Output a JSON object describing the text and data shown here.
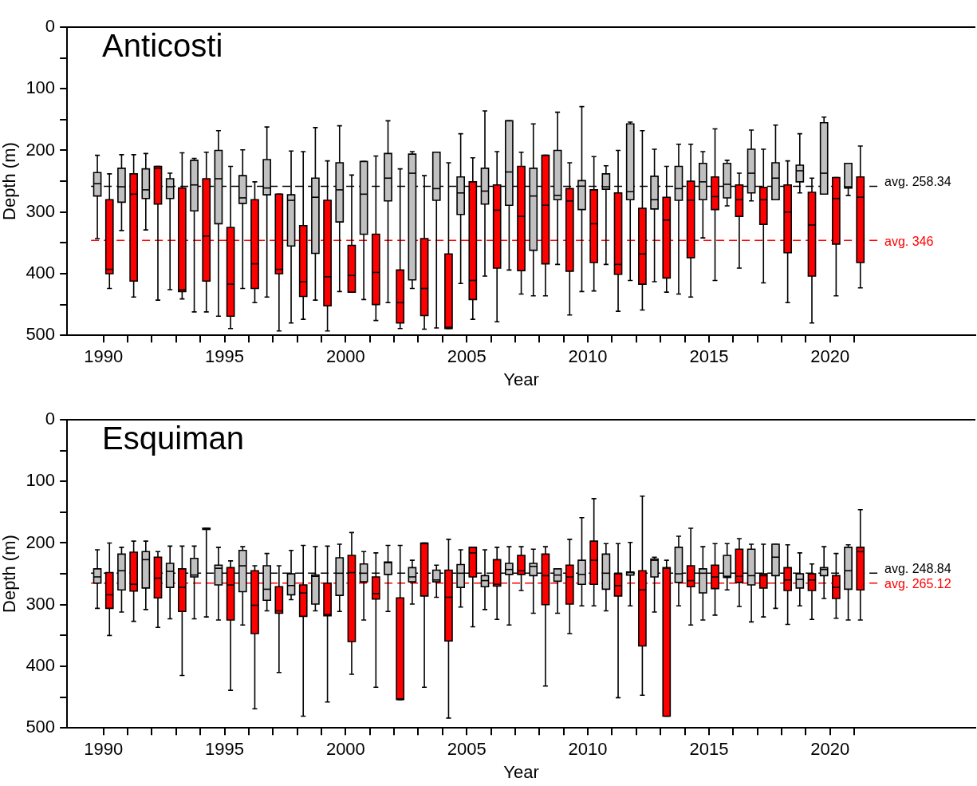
{
  "chart_data": [
    {
      "type": "box",
      "title": "Anticosti",
      "xlabel": "Year",
      "ylabel": "Depth (m)",
      "legend": false,
      "xlim": [
        1988.5,
        2026
      ],
      "ylim": [
        500,
        0
      ],
      "xticks": [
        1990,
        {
          "value": 1991,
          "label": null
        },
        {
          "value": 1992,
          "label": null
        },
        {
          "value": 1993,
          "label": null
        },
        {
          "value": 1994,
          "label": null
        },
        1995,
        {
          "value": 1996,
          "label": null
        },
        {
          "value": 1997,
          "label": null
        },
        {
          "value": 1998,
          "label": null
        },
        {
          "value": 1999,
          "label": null
        },
        2000,
        {
          "value": 2001,
          "label": null
        },
        {
          "value": 2002,
          "label": null
        },
        {
          "value": 2003,
          "label": null
        },
        {
          "value": 2004,
          "label": null
        },
        2005,
        {
          "value": 2006,
          "label": null
        },
        {
          "value": 2007,
          "label": null
        },
        {
          "value": 2008,
          "label": null
        },
        {
          "value": 2009,
          "label": null
        },
        2010,
        {
          "value": 2011,
          "label": null
        },
        {
          "value": 2012,
          "label": null
        },
        {
          "value": 2013,
          "label": null
        },
        {
          "value": 2014,
          "label": null
        },
        2015,
        {
          "value": 2016,
          "label": null
        },
        {
          "value": 2017,
          "label": null
        },
        {
          "value": 2018,
          "label": null
        },
        {
          "value": 2019,
          "label": null
        },
        2020,
        {
          "value": 2021,
          "label": null
        }
      ],
      "yticks": [
        0,
        {
          "value": 50,
          "label": null
        },
        100,
        {
          "value": 150,
          "label": null
        },
        200,
        {
          "value": 250,
          "label": null
        },
        300,
        {
          "value": 350,
          "label": null
        },
        400,
        {
          "value": 450,
          "label": null
        },
        500
      ],
      "series": [
        {
          "color": "#c0c0c0",
          "x": [
            1989.75,
            1990.75,
            1991.75,
            1992.75,
            1993.75,
            1994.75,
            1995.75,
            1996.75,
            1997.75,
            1998.75,
            1999.75,
            2000.75,
            2001.75,
            2002.75,
            2003.75,
            2004.75,
            2005.75,
            2006.75,
            2007.75,
            2008.75,
            2009.75,
            2010.75,
            2011.75,
            2012.75,
            2013.75,
            2014.75,
            2015.75,
            2016.75,
            2017.75,
            2018.75,
            2019.75,
            2020.75
          ],
          "boxes": [
            {
              "low": 208,
              "q1": 236,
              "median": 254,
              "q3": 274,
              "high": 343
            },
            {
              "low": 207,
              "q1": 229,
              "median": 259,
              "q3": 284,
              "high": 330
            },
            {
              "low": 205,
              "q1": 230,
              "median": 264,
              "q3": 278,
              "high": 329
            },
            {
              "low": 237,
              "q1": 246,
              "median": 259,
              "q3": 278,
              "high": 426
            },
            {
              "low": 213,
              "q1": 216,
              "median": 256,
              "q3": 298,
              "high": 462
            },
            {
              "low": 168,
              "q1": 200,
              "median": 246,
              "q3": 319,
              "high": 469
            },
            {
              "low": 199,
              "q1": 241,
              "median": 277,
              "q3": 286,
              "high": 424
            },
            {
              "low": 162,
              "q1": 215,
              "median": 261,
              "q3": 272,
              "high": 438
            },
            {
              "low": 201,
              "q1": 272,
              "median": 281,
              "q3": 355,
              "high": 480
            },
            {
              "low": 163,
              "q1": 245,
              "median": 276,
              "q3": 367,
              "high": 443
            },
            {
              "low": 160,
              "q1": 220,
              "median": 264,
              "q3": 316,
              "high": 429
            },
            {
              "low": 218,
              "q1": 218,
              "median": 271,
              "q3": 336,
              "high": 442
            },
            {
              "low": 152,
              "q1": 205,
              "median": 245,
              "q3": 282,
              "high": 447
            },
            {
              "low": 202,
              "q1": 206,
              "median": 237,
              "q3": 410,
              "high": 424
            },
            {
              "low": 203,
              "q1": 203,
              "median": 262,
              "q3": 281,
              "high": 488
            },
            {
              "low": 173,
              "q1": 243,
              "median": 269,
              "q3": 304,
              "high": 416
            },
            {
              "low": 136,
              "q1": 229,
              "median": 266,
              "q3": 287,
              "high": 404
            },
            {
              "low": 152,
              "q1": 152,
              "median": 235,
              "q3": 289,
              "high": 394
            },
            {
              "low": 157,
              "q1": 229,
              "median": 274,
              "q3": 362,
              "high": 436
            },
            {
              "low": 138,
              "q1": 200,
              "median": 273,
              "q3": 280,
              "high": 385
            },
            {
              "low": 129,
              "q1": 249,
              "median": 258,
              "q3": 296,
              "high": 429
            },
            {
              "low": 225,
              "q1": 238,
              "median": 259,
              "q3": 263,
              "high": 385
            },
            {
              "low": 154,
              "q1": 157,
              "median": 267,
              "q3": 280,
              "high": 411
            },
            {
              "low": 198,
              "q1": 242,
              "median": 280,
              "q3": 295,
              "high": 413
            },
            {
              "low": 190,
              "q1": 226,
              "median": 262,
              "q3": 281,
              "high": 433
            },
            {
              "low": 202,
              "q1": 221,
              "median": 251,
              "q3": 280,
              "high": 342
            },
            {
              "low": 216,
              "q1": 221,
              "median": 255,
              "q3": 277,
              "high": 290
            },
            {
              "low": 167,
              "q1": 198,
              "median": 237,
              "q3": 269,
              "high": 282
            },
            {
              "low": 159,
              "q1": 220,
              "median": 245,
              "q3": 280,
              "high": 280
            },
            {
              "low": 173,
              "q1": 224,
              "median": 233,
              "q3": 251,
              "high": 269
            },
            {
              "low": 146,
              "q1": 155,
              "median": 237,
              "q3": 271,
              "high": 271
            },
            {
              "low": 221,
              "q1": 221,
              "median": 259,
              "q3": 261,
              "high": 273
            }
          ]
        },
        {
          "color": "#ff0000",
          "x": [
            1990.25,
            1991.25,
            1992.25,
            1993.25,
            1994.25,
            1995.25,
            1996.25,
            1997.25,
            1998.25,
            1999.25,
            2000.25,
            2001.25,
            2002.25,
            2003.25,
            2004.25,
            2005.25,
            2006.25,
            2007.25,
            2008.25,
            2009.25,
            2010.25,
            2011.25,
            2012.25,
            2013.25,
            2014.25,
            2015.25,
            2016.25,
            2017.25,
            2018.25,
            2019.25,
            2020.25,
            2021.25
          ],
          "boxes": [
            {
              "low": 238,
              "q1": 280,
              "median": 393,
              "q3": 400,
              "high": 424
            },
            {
              "low": 207,
              "q1": 238,
              "median": 271,
              "q3": 412,
              "high": 438
            },
            {
              "low": 226,
              "q1": 226,
              "median": 229,
              "q3": 287,
              "high": 443
            },
            {
              "low": 204,
              "q1": 261,
              "median": 426,
              "q3": 429,
              "high": 441
            },
            {
              "low": 203,
              "q1": 246,
              "median": 339,
              "q3": 412,
              "high": 462
            },
            {
              "low": 226,
              "q1": 325,
              "median": 417,
              "q3": 469,
              "high": 489
            },
            {
              "low": 251,
              "q1": 280,
              "median": 384,
              "q3": 424,
              "high": 447
            },
            {
              "low": 271,
              "q1": 271,
              "median": 393,
              "q3": 400,
              "high": 493
            },
            {
              "low": 202,
              "q1": 322,
              "median": 413,
              "q3": 437,
              "high": 474
            },
            {
              "low": 217,
              "q1": 281,
              "median": 405,
              "q3": 452,
              "high": 493
            },
            {
              "low": 240,
              "q1": 354,
              "median": 403,
              "q3": 430,
              "high": 430
            },
            {
              "low": 209,
              "q1": 336,
              "median": 398,
              "q3": 450,
              "high": 476
            },
            {
              "low": 230,
              "q1": 394,
              "median": 447,
              "q3": 480,
              "high": 489
            },
            {
              "low": 241,
              "q1": 343,
              "median": 424,
              "q3": 468,
              "high": 490
            },
            {
              "low": 220,
              "q1": 368,
              "median": 487,
              "q3": 489,
              "high": 489
            },
            {
              "low": 212,
              "q1": 251,
              "median": 411,
              "q3": 442,
              "high": 474
            },
            {
              "low": 202,
              "q1": 256,
              "median": 297,
              "q3": 391,
              "high": 478
            },
            {
              "low": 203,
              "q1": 226,
              "median": 307,
              "q3": 395,
              "high": 433
            },
            {
              "low": 208,
              "q1": 208,
              "median": 289,
              "q3": 384,
              "high": 436
            },
            {
              "low": 220,
              "q1": 262,
              "median": 282,
              "q3": 396,
              "high": 467
            },
            {
              "low": 210,
              "q1": 264,
              "median": 319,
              "q3": 382,
              "high": 428
            },
            {
              "low": 200,
              "q1": 269,
              "median": 385,
              "q3": 401,
              "high": 461
            },
            {
              "low": 168,
              "q1": 294,
              "median": 368,
              "q3": 417,
              "high": 459
            },
            {
              "low": 226,
              "q1": 276,
              "median": 313,
              "q3": 407,
              "high": 430
            },
            {
              "low": 190,
              "q1": 250,
              "median": 281,
              "q3": 374,
              "high": 438
            },
            {
              "low": 165,
              "q1": 243,
              "median": 275,
              "q3": 296,
              "high": 411
            },
            {
              "low": 237,
              "q1": 256,
              "median": 280,
              "q3": 307,
              "high": 391
            },
            {
              "low": 198,
              "q1": 260,
              "median": 280,
              "q3": 320,
              "high": 415
            },
            {
              "low": 217,
              "q1": 256,
              "median": 300,
              "q3": 366,
              "high": 447
            },
            {
              "low": 245,
              "q1": 268,
              "median": 321,
              "q3": 404,
              "high": 480
            },
            {
              "low": 244,
              "q1": 244,
              "median": 278,
              "q3": 352,
              "high": 436
            },
            {
              "low": 193,
              "q1": 243,
              "median": 276,
              "q3": 382,
              "high": 423
            }
          ]
        }
      ],
      "ref_lines": [
        {
          "axis": "y",
          "value": 258.34,
          "label": "avg. 258.34",
          "color": "#000000",
          "line_style": "dashed"
        },
        {
          "axis": "y",
          "value": 346,
          "label": "avg. 346",
          "color": "#ff0000",
          "line_style": "dashed"
        }
      ]
    },
    {
      "type": "box",
      "title": "Esquiman",
      "xlabel": "Year",
      "ylabel": "Depth (m)",
      "legend": false,
      "xlim": [
        1988.5,
        2026
      ],
      "ylim": [
        500,
        0
      ],
      "xticks": [
        1990,
        {
          "value": 1991,
          "label": null
        },
        {
          "value": 1992,
          "label": null
        },
        {
          "value": 1993,
          "label": null
        },
        {
          "value": 1994,
          "label": null
        },
        1995,
        {
          "value": 1996,
          "label": null
        },
        {
          "value": 1997,
          "label": null
        },
        {
          "value": 1998,
          "label": null
        },
        {
          "value": 1999,
          "label": null
        },
        2000,
        {
          "value": 2001,
          "label": null
        },
        {
          "value": 2002,
          "label": null
        },
        {
          "value": 2003,
          "label": null
        },
        {
          "value": 2004,
          "label": null
        },
        2005,
        {
          "value": 2006,
          "label": null
        },
        {
          "value": 2007,
          "label": null
        },
        {
          "value": 2008,
          "label": null
        },
        {
          "value": 2009,
          "label": null
        },
        2010,
        {
          "value": 2011,
          "label": null
        },
        {
          "value": 2012,
          "label": null
        },
        {
          "value": 2013,
          "label": null
        },
        {
          "value": 2014,
          "label": null
        },
        2015,
        {
          "value": 2016,
          "label": null
        },
        {
          "value": 2017,
          "label": null
        },
        {
          "value": 2018,
          "label": null
        },
        {
          "value": 2019,
          "label": null
        },
        2020,
        {
          "value": 2021,
          "label": null
        }
      ],
      "yticks": [
        0,
        {
          "value": 50,
          "label": null
        },
        100,
        {
          "value": 150,
          "label": null
        },
        200,
        {
          "value": 250,
          "label": null
        },
        300,
        {
          "value": 350,
          "label": null
        },
        400,
        {
          "value": 450,
          "label": null
        },
        500
      ],
      "series": [
        {
          "color": "#c0c0c0",
          "x": [
            1989.75,
            1990.75,
            1991.75,
            1992.75,
            1993.75,
            1994.75,
            1995.75,
            1996.75,
            1997.75,
            1998.75,
            1999.75,
            2000.75,
            2001.75,
            2002.75,
            2003.75,
            2004.75,
            2005.75,
            2006.75,
            2007.75,
            2008.75,
            2009.75,
            2010.75,
            2011.75,
            2012.75,
            2013.75,
            2014.75,
            2015.75,
            2016.75,
            2017.75,
            2018.75,
            2019.75,
            2020.75
          ],
          "boxes": [
            {
              "low": 211,
              "q1": 242,
              "median": 255,
              "q3": 265,
              "high": 306
            },
            {
              "low": 207,
              "q1": 218,
              "median": 245,
              "q3": 276,
              "high": 312
            },
            {
              "low": 197,
              "q1": 214,
              "median": 227,
              "q3": 273,
              "high": 308
            },
            {
              "low": 205,
              "q1": 233,
              "median": 246,
              "q3": 272,
              "high": 323
            },
            {
              "low": 205,
              "q1": 225,
              "median": 252,
              "q3": 255,
              "high": 323
            },
            {
              "low": 207,
              "q1": 236,
              "median": 241,
              "q3": 268,
              "high": 325
            },
            {
              "low": 206,
              "q1": 212,
              "median": 237,
              "q3": 279,
              "high": 333
            },
            {
              "low": 217,
              "q1": 237,
              "median": 275,
              "q3": 293,
              "high": 310
            },
            {
              "low": 212,
              "q1": 250,
              "median": 269,
              "q3": 284,
              "high": 292
            },
            {
              "low": 206,
              "q1": 252,
              "median": 254,
              "q3": 299,
              "high": 310
            },
            {
              "low": 202,
              "q1": 224,
              "median": 249,
              "q3": 285,
              "high": 311
            },
            {
              "low": 214,
              "q1": 234,
              "median": 249,
              "q3": 263,
              "high": 325
            },
            {
              "low": 204,
              "q1": 231,
              "median": 232,
              "q3": 251,
              "high": 311
            },
            {
              "low": 228,
              "q1": 240,
              "median": 255,
              "q3": 263,
              "high": 299
            },
            {
              "low": 236,
              "q1": 244,
              "median": 260,
              "q3": 263,
              "high": 288
            },
            {
              "low": 211,
              "q1": 235,
              "median": 249,
              "q3": 272,
              "high": 304
            },
            {
              "low": 211,
              "q1": 253,
              "median": 261,
              "q3": 271,
              "high": 308
            },
            {
              "low": 206,
              "q1": 233,
              "median": 243,
              "q3": 251,
              "high": 333
            },
            {
              "low": 210,
              "q1": 233,
              "median": 238,
              "q3": 253,
              "high": 314
            },
            {
              "low": 242,
              "q1": 242,
              "median": 252,
              "q3": 262,
              "high": 314
            },
            {
              "low": 159,
              "q1": 228,
              "median": 251,
              "q3": 267,
              "high": 302
            },
            {
              "low": 201,
              "q1": 218,
              "median": 249,
              "q3": 275,
              "high": 310
            },
            {
              "low": 199,
              "q1": 247,
              "median": 248,
              "q3": 252,
              "high": 302
            },
            {
              "low": 223,
              "q1": 226,
              "median": 228,
              "q3": 255,
              "high": 312
            },
            {
              "low": 189,
              "q1": 207,
              "median": 250,
              "q3": 264,
              "high": 302
            },
            {
              "low": 206,
              "q1": 242,
              "median": 249,
              "q3": 281,
              "high": 325
            },
            {
              "low": 201,
              "q1": 220,
              "median": 254,
              "q3": 256,
              "high": 276
            },
            {
              "low": 202,
              "q1": 210,
              "median": 253,
              "q3": 268,
              "high": 328
            },
            {
              "low": 202,
              "q1": 202,
              "median": 223,
              "q3": 253,
              "high": 306
            },
            {
              "low": 216,
              "q1": 250,
              "median": 259,
              "q3": 273,
              "high": 302
            },
            {
              "low": 206,
              "q1": 240,
              "median": 243,
              "q3": 253,
              "high": 290
            },
            {
              "low": 203,
              "q1": 207,
              "median": 245,
              "q3": 275,
              "high": 325
            }
          ]
        },
        {
          "color": "#ff0000",
          "x": [
            1990.25,
            1991.25,
            1992.25,
            1993.25,
            1994.25,
            1995.25,
            1996.25,
            1997.25,
            1998.25,
            1999.25,
            2000.25,
            2001.25,
            2002.25,
            2003.25,
            2004.25,
            2005.25,
            2006.25,
            2007.25,
            2008.25,
            2009.25,
            2010.25,
            2011.25,
            2012.25,
            2013.25,
            2014.25,
            2015.25,
            2016.25,
            2017.25,
            2018.25,
            2019.25,
            2020.25,
            2021.25
          ],
          "boxes": [
            {
              "low": 200,
              "q1": 248,
              "median": 284,
              "q3": 306,
              "high": 350
            },
            {
              "low": 197,
              "q1": 215,
              "median": 267,
              "q3": 278,
              "high": 327
            },
            {
              "low": 214,
              "q1": 223,
              "median": 257,
              "q3": 289,
              "high": 337
            },
            {
              "low": 205,
              "q1": 242,
              "median": 272,
              "q3": 311,
              "high": 415
            },
            {
              "low": 176,
              "q1": 176,
              "median": 177,
              "q3": 178,
              "high": 320
            },
            {
              "low": 229,
              "q1": 240,
              "median": 268,
              "q3": 325,
              "high": 439
            },
            {
              "low": 237,
              "q1": 245,
              "median": 301,
              "q3": 347,
              "high": 469
            },
            {
              "low": 237,
              "q1": 271,
              "median": 310,
              "q3": 314,
              "high": 410
            },
            {
              "low": 204,
              "q1": 268,
              "median": 281,
              "q3": 319,
              "high": 481
            },
            {
              "low": 205,
              "q1": 265,
              "median": 316,
              "q3": 318,
              "high": 458
            },
            {
              "low": 183,
              "q1": 220,
              "median": 248,
              "q3": 360,
              "high": 413
            },
            {
              "low": 216,
              "q1": 255,
              "median": 282,
              "q3": 291,
              "high": 434
            },
            {
              "low": 204,
              "q1": 289,
              "median": 453,
              "q3": 454,
              "high": 454
            },
            {
              "low": 200,
              "q1": 200,
              "median": 201,
              "q3": 286,
              "high": 434
            },
            {
              "low": 194,
              "q1": 244,
              "median": 288,
              "q3": 359,
              "high": 484
            },
            {
              "low": 207,
              "q1": 207,
              "median": 216,
              "q3": 255,
              "high": 336
            },
            {
              "low": 207,
              "q1": 227,
              "median": 267,
              "q3": 270,
              "high": 324
            },
            {
              "low": 206,
              "q1": 220,
              "median": 245,
              "q3": 251,
              "high": 277
            },
            {
              "low": 206,
              "q1": 218,
              "median": 253,
              "q3": 300,
              "high": 432
            },
            {
              "low": 194,
              "q1": 236,
              "median": 255,
              "q3": 299,
              "high": 347
            },
            {
              "low": 128,
              "q1": 197,
              "median": 228,
              "q3": 267,
              "high": 302
            },
            {
              "low": 201,
              "q1": 250,
              "median": 269,
              "q3": 286,
              "high": 451
            },
            {
              "low": 124,
              "q1": 245,
              "median": 276,
              "q3": 367,
              "high": 447
            },
            {
              "low": 228,
              "q1": 240,
              "median": 241,
              "q3": 481,
              "high": 481
            },
            {
              "low": 176,
              "q1": 237,
              "median": 261,
              "q3": 271,
              "high": 333
            },
            {
              "low": 201,
              "q1": 236,
              "median": 255,
              "q3": 274,
              "high": 317
            },
            {
              "low": 193,
              "q1": 210,
              "median": 254,
              "q3": 264,
              "high": 303
            },
            {
              "low": 202,
              "q1": 250,
              "median": 253,
              "q3": 273,
              "high": 320
            },
            {
              "low": 203,
              "q1": 240,
              "median": 260,
              "q3": 277,
              "high": 332
            },
            {
              "low": 234,
              "q1": 250,
              "median": 260,
              "q3": 277,
              "high": 324
            },
            {
              "low": 217,
              "q1": 253,
              "median": 272,
              "q3": 290,
              "high": 322
            },
            {
              "low": 146,
              "q1": 207,
              "median": 214,
              "q3": 276,
              "high": 325
            }
          ]
        }
      ],
      "ref_lines": [
        {
          "axis": "y",
          "value": 248.84,
          "label": "avg. 248.84",
          "color": "#000000",
          "line_style": "dashed"
        },
        {
          "axis": "y",
          "value": 265.12,
          "label": "avg. 265.12",
          "color": "#ff0000",
          "line_style": "dashed"
        }
      ]
    }
  ]
}
